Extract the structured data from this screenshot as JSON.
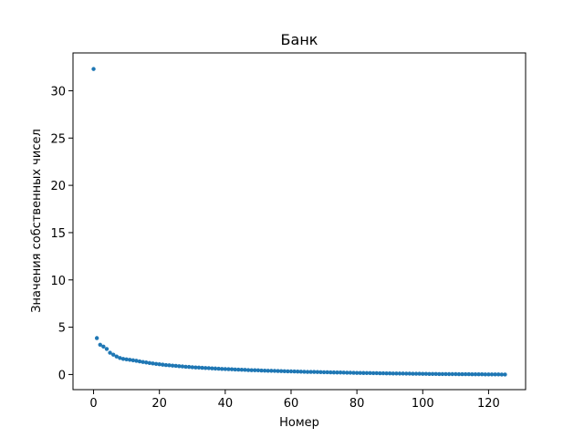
{
  "chart_data": {
    "type": "scatter",
    "title": "Банк",
    "xlabel": "Номер",
    "ylabel": "Значения собственных чисел",
    "xlim": [
      -6.25,
      131.25
    ],
    "ylim": [
      -1.6,
      34.0
    ],
    "xticks": [
      0,
      20,
      40,
      60,
      80,
      100,
      120
    ],
    "yticks": [
      0,
      5,
      10,
      15,
      20,
      25,
      30
    ],
    "grid": false,
    "marker_color": "#1f77b4",
    "series": [
      {
        "x": [
          0,
          1,
          2,
          3,
          4,
          5,
          6,
          7,
          8,
          9,
          10,
          11,
          12,
          13,
          14,
          15,
          16,
          17,
          18,
          19,
          20,
          21,
          22,
          23,
          24,
          25,
          26,
          27,
          28,
          29,
          30,
          31,
          32,
          33,
          34,
          35,
          36,
          37,
          38,
          39,
          40,
          41,
          42,
          43,
          44,
          45,
          46,
          47,
          48,
          49,
          50,
          51,
          52,
          53,
          54,
          55,
          56,
          57,
          58,
          59,
          60,
          61,
          62,
          63,
          64,
          65,
          66,
          67,
          68,
          69,
          70,
          71,
          72,
          73,
          74,
          75,
          76,
          77,
          78,
          79,
          80,
          81,
          82,
          83,
          84,
          85,
          86,
          87,
          88,
          89,
          90,
          91,
          92,
          93,
          94,
          95,
          96,
          97,
          98,
          99,
          100,
          101,
          102,
          103,
          104,
          105,
          106,
          107,
          108,
          109,
          110,
          111,
          112,
          113,
          114,
          115,
          116,
          117,
          118,
          119,
          120,
          121,
          122,
          123,
          124,
          125
        ],
        "values": [
          32.3,
          3.85,
          3.15,
          2.95,
          2.7,
          2.3,
          2.1,
          1.9,
          1.75,
          1.65,
          1.6,
          1.55,
          1.5,
          1.45,
          1.38,
          1.32,
          1.27,
          1.22,
          1.17,
          1.12,
          1.08,
          1.04,
          1.0,
          0.97,
          0.94,
          0.91,
          0.88,
          0.85,
          0.82,
          0.8,
          0.77,
          0.75,
          0.73,
          0.71,
          0.69,
          0.67,
          0.65,
          0.63,
          0.61,
          0.59,
          0.58,
          0.56,
          0.55,
          0.53,
          0.52,
          0.5,
          0.49,
          0.47,
          0.46,
          0.45,
          0.44,
          0.42,
          0.41,
          0.4,
          0.39,
          0.38,
          0.37,
          0.36,
          0.35,
          0.34,
          0.33,
          0.32,
          0.31,
          0.3,
          0.29,
          0.28,
          0.28,
          0.27,
          0.26,
          0.25,
          0.24,
          0.24,
          0.23,
          0.22,
          0.21,
          0.21,
          0.2,
          0.19,
          0.19,
          0.18,
          0.17,
          0.17,
          0.16,
          0.15,
          0.15,
          0.14,
          0.14,
          0.13,
          0.13,
          0.12,
          0.12,
          0.11,
          0.11,
          0.1,
          0.1,
          0.09,
          0.09,
          0.08,
          0.08,
          0.08,
          0.07,
          0.07,
          0.06,
          0.06,
          0.06,
          0.05,
          0.05,
          0.05,
          0.04,
          0.04,
          0.04,
          0.03,
          0.03,
          0.03,
          0.03,
          0.02,
          0.02,
          0.02,
          0.02,
          0.01,
          0.01,
          0.01,
          0.01,
          0.01,
          0.0,
          0.0
        ]
      }
    ]
  }
}
